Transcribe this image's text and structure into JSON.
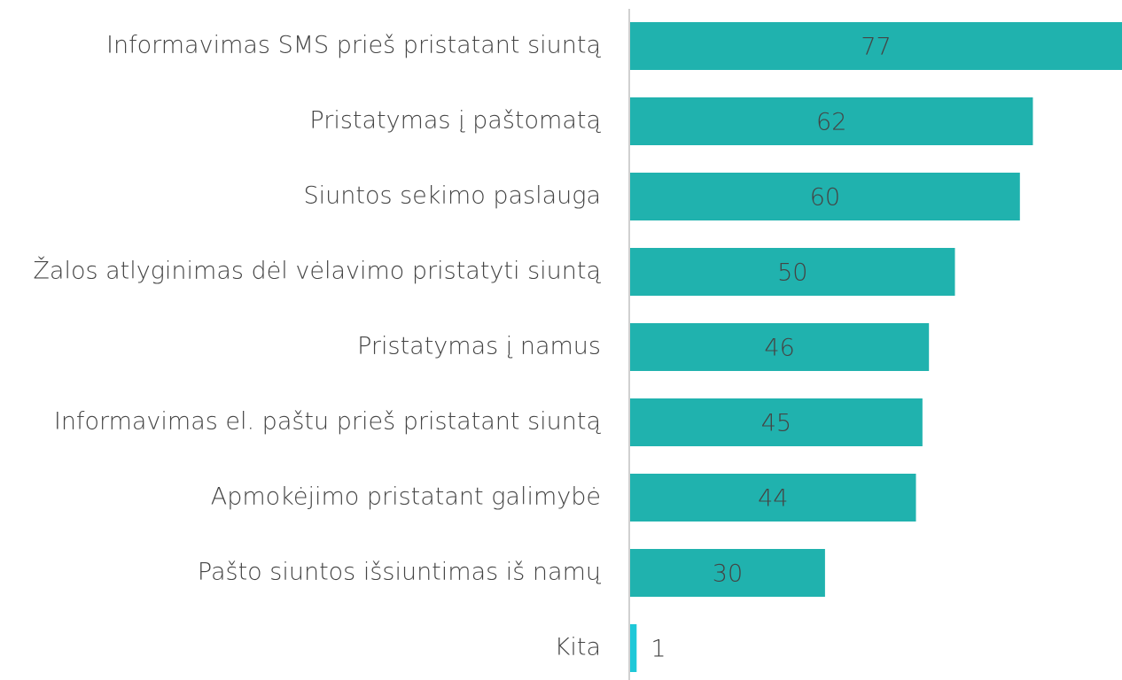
{
  "chart_data": {
    "type": "hbar",
    "categories": [
      "Informavimas SMS prieš pristatant siuntą",
      "Pristatymas į paštomatą",
      "Siuntos sekimo paslauga",
      "Žalos atlyginimas dėl vėlavimo pristatyti siuntą",
      "Pristatymas į namus",
      "Informavimas el. paštu prieš pristatant siuntą",
      "Apmokėjimo pristatant galimybė",
      "Pašto siuntos išsiuntimas iš namų",
      "Kita"
    ],
    "values": [
      77,
      62,
      60,
      50,
      46,
      45,
      44,
      30,
      1
    ],
    "colors": [
      "#20b2ae",
      "#20b2ae",
      "#20b2ae",
      "#20b2ae",
      "#20b2ae",
      "#20b2ae",
      "#20b2ae",
      "#20b2ae",
      "#1ec8d8"
    ]
  }
}
